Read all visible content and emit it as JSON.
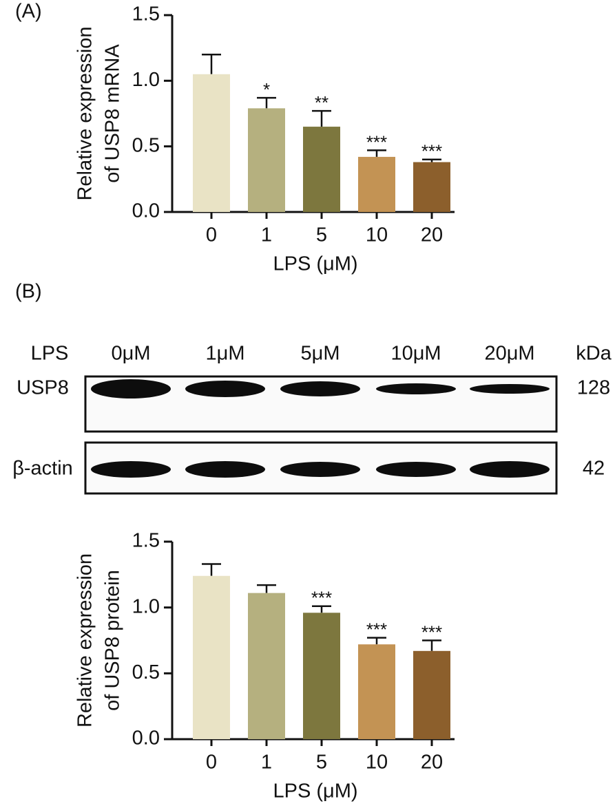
{
  "panels": [
    "(A)",
    "(B)"
  ],
  "chart_data": [
    {
      "type": "bar",
      "categories": [
        "0",
        "1",
        "5",
        "10",
        "20"
      ],
      "values": [
        1.05,
        0.79,
        0.65,
        0.42,
        0.38
      ],
      "errors": [
        0.15,
        0.08,
        0.12,
        0.05,
        0.02
      ],
      "annotations": [
        null,
        "*",
        "**",
        "***",
        "***"
      ],
      "colors": [
        "#e9e3c5",
        "#b5b07f",
        "#7d773e",
        "#c39354",
        "#8c5f2c"
      ],
      "ylim": [
        0,
        1.5
      ],
      "yticks": [
        {
          "value": 0,
          "label": "0.0"
        },
        0.5,
        {
          "value": 1,
          "label": "1.0"
        },
        1.5
      ],
      "ylabel": [
        "Relative expression",
        "of USP8 mRNA"
      ],
      "xlabel": "LPS (μM)"
    },
    {
      "type": "bar",
      "categories": [
        "0",
        "1",
        "5",
        "10",
        "20"
      ],
      "values": [
        1.24,
        1.11,
        0.96,
        0.72,
        0.67
      ],
      "errors": [
        0.09,
        0.06,
        0.05,
        0.05,
        0.08
      ],
      "annotations": [
        null,
        null,
        "***",
        "***",
        "***"
      ],
      "colors": [
        "#e9e3c5",
        "#b5b07f",
        "#7d773e",
        "#c39354",
        "#8c5f2c"
      ],
      "ylim": [
        0,
        1.5
      ],
      "yticks": [
        {
          "value": 0,
          "label": "0.0"
        },
        0.5,
        {
          "value": 1,
          "label": "1.0"
        },
        1.5
      ],
      "ylabel": [
        "Relative expression",
        "of USP8 protein"
      ],
      "xlabel": "LPS (μM)"
    }
  ],
  "blot": {
    "row_header": "LPS",
    "lanes": [
      "0μM",
      "1μM",
      "5μM",
      "10μM",
      "20μM"
    ],
    "unit": "kDa",
    "rows": [
      {
        "label": "USP8",
        "kda": 128
      },
      {
        "label": "β-actin",
        "kda": 42
      }
    ]
  }
}
